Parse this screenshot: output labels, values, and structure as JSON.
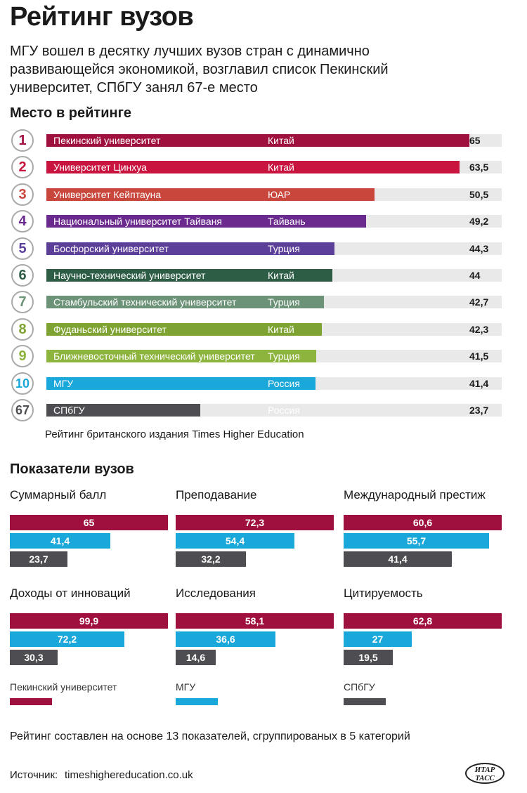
{
  "title": "Рейтинг вузов",
  "subtitle": "МГУ вошел в десятку лучших вузов стран с динамично развивающейся экономикой, возглавил список Пекинский университет, СПбГУ занял 67-е место",
  "ranking_heading": "Место в рейтинге",
  "ranking_note": "Рейтинг британского издания Times Higher Education",
  "indicators_heading": "Показатели вузов",
  "footnote": "Рейтинг составлен на основе 13 показателей, сгруппированых в 5 категорий",
  "source_label": "Источник:",
  "source_url": "timeshighereducation.co.uk",
  "logo_text": "ИТАР ТАСС",
  "chart_data": [
    {
      "type": "bar",
      "title": "Место в рейтинге",
      "xlim": [
        0,
        70
      ],
      "rows": [
        {
          "rank": "1",
          "university": "Пекинский университет",
          "country": "Китай",
          "score": 65,
          "score_label": "65",
          "color": "#a0103e"
        },
        {
          "rank": "2",
          "university": "Университет Цинхуа",
          "country": "Китай",
          "score": 63.5,
          "score_label": "63,5",
          "color": "#c8143e"
        },
        {
          "rank": "3",
          "university": "Университет Кейптауна",
          "country": "ЮАР",
          "score": 50.5,
          "score_label": "50,5",
          "color": "#c8463c"
        },
        {
          "rank": "4",
          "university": "Национальный университет Тайваня",
          "country": "Тайвань",
          "score": 49.2,
          "score_label": "49,2",
          "color": "#6a2a8e"
        },
        {
          "rank": "5",
          "university": "Босфорский университет",
          "country": "Турция",
          "score": 44.3,
          "score_label": "44,3",
          "color": "#5b3f99"
        },
        {
          "rank": "6",
          "university": "Научно-технический университет",
          "country": "Китай",
          "score": 44,
          "score_label": "44",
          "color": "#2e5d46"
        },
        {
          "rank": "7",
          "university": "Стамбульский технический университет",
          "country": "Турция",
          "score": 42.7,
          "score_label": "42,7",
          "color": "#6c9278"
        },
        {
          "rank": "8",
          "university": "Фуданьский университет",
          "country": "Китай",
          "score": 42.3,
          "score_label": "42,3",
          "color": "#7fa332"
        },
        {
          "rank": "9",
          "university": "Ближневосточный технический университет",
          "country": "Турция",
          "score": 41.5,
          "score_label": "41,5",
          "color": "#8db43d"
        },
        {
          "rank": "10",
          "university": "МГУ",
          "country": "Россия",
          "score": 41.4,
          "score_label": "41,4",
          "color": "#1aa7d9"
        },
        {
          "rank": "67",
          "university": "СПбГУ",
          "country": "Россия",
          "score": 23.7,
          "score_label": "23,7",
          "color": "#4d4d52"
        }
      ]
    },
    {
      "type": "bar",
      "title": "Показатели вузов",
      "series": [
        {
          "name": "Пекинский университет",
          "color": "#a0103e"
        },
        {
          "name": "МГУ",
          "color": "#1aa7d9"
        },
        {
          "name": "СПбГУ",
          "color": "#4d4d52"
        }
      ],
      "panels": [
        {
          "title": "Суммарный балл",
          "values": [
            65,
            41.4,
            23.7
          ],
          "labels": [
            "65",
            "41,4",
            "23,7"
          ]
        },
        {
          "title": "Преподавание",
          "values": [
            72.3,
            54.4,
            32.2
          ],
          "labels": [
            "72,3",
            "54,4",
            "32,2"
          ]
        },
        {
          "title": "Международный престиж",
          "values": [
            60.6,
            55.7,
            41.4
          ],
          "labels": [
            "60,6",
            "55,7",
            "41,4"
          ]
        },
        {
          "title": "Доходы от инноваций",
          "values": [
            99.9,
            72.2,
            30.3
          ],
          "labels": [
            "99,9",
            "72,2",
            "30,3"
          ]
        },
        {
          "title": "Исследования",
          "values": [
            58.1,
            36.6,
            14.6
          ],
          "labels": [
            "58,1",
            "36,6",
            "14,6"
          ]
        },
        {
          "title": "Цитируемость",
          "values": [
            62.8,
            27,
            19.5
          ],
          "labels": [
            "62,8",
            "27",
            "19,5"
          ]
        }
      ]
    }
  ]
}
